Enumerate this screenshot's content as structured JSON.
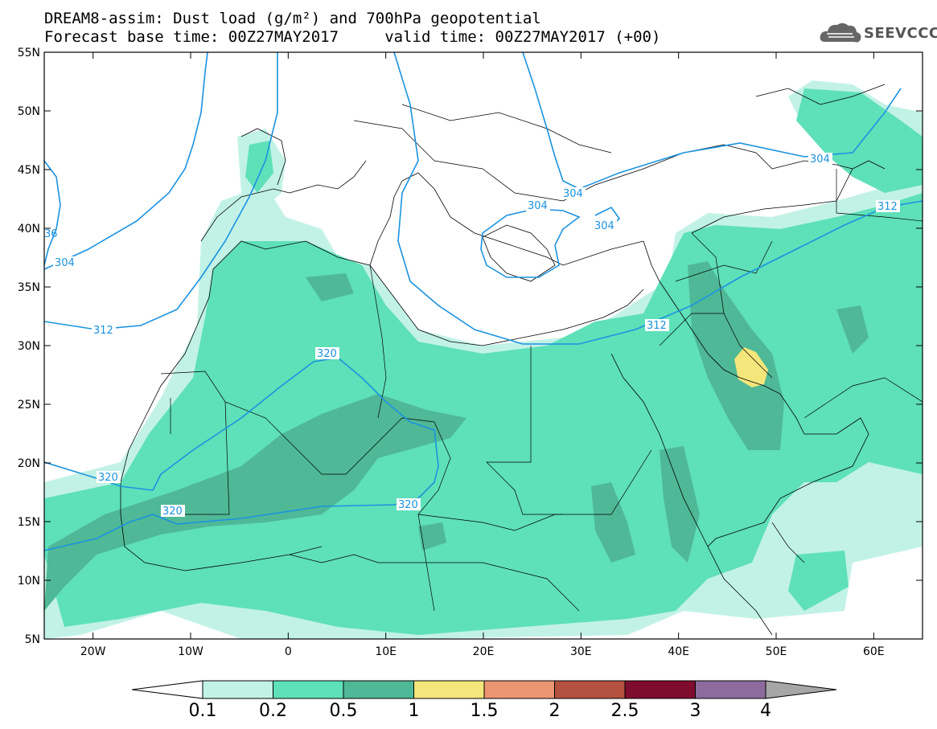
{
  "title": {
    "line1": "DREAM8-assim: Dust load (g/m²) and 700hPa geopotential",
    "line2": "Forecast base time: 00Z27MAY2017     valid time: 00Z27MAY2017 (+00)"
  },
  "logo": {
    "text": "SEEVCCC",
    "icon": "cloud-icon"
  },
  "map": {
    "lon_range": [
      -25,
      65
    ],
    "lat_range": [
      5,
      55
    ],
    "lat_labels": [
      "55N",
      "50N",
      "45N",
      "40N",
      "35N",
      "30N",
      "25N",
      "20N",
      "15N",
      "10N",
      "5N"
    ],
    "lon_labels": [
      "20W",
      "10W",
      "0",
      "10E",
      "20E",
      "30E",
      "40E",
      "50E",
      "60E"
    ],
    "contour_color": "#1b93e0",
    "contour_labels": [
      "304",
      "304",
      "304",
      "304",
      "304",
      "312",
      "312",
      "312",
      "320",
      "320",
      "320",
      "320",
      "36"
    ]
  },
  "colorbar": {
    "ticks": [
      "0.1",
      "0.2",
      "0.5",
      "1",
      "1.5",
      "2",
      "2.5",
      "3",
      "4"
    ],
    "colors": [
      "#c2f2e6",
      "#5ee0b9",
      "#4fb896",
      "#f4e67a",
      "#ec9572",
      "#b55140",
      "#7e0c2e",
      "#8d6b9c"
    ],
    "under_color": "#ffffff",
    "over_color": "#a6a6a6"
  }
}
